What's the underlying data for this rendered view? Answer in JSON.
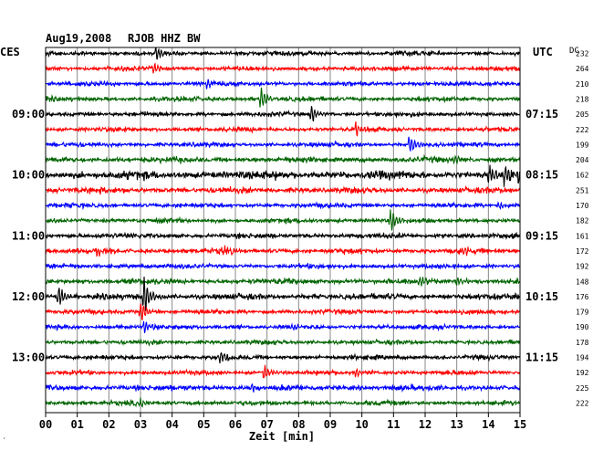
{
  "header": {
    "date": "Aug19,2008",
    "station": "RJOB HHZ BW",
    "left_timezone": "CES",
    "right_timezone": "UTC",
    "offset_label": "DC"
  },
  "footer": {
    "xlabel": "Zeit [min]",
    "corner_mark": "′"
  },
  "colors": {
    "cycle": [
      "#000000",
      "#ff0000",
      "#0000ff",
      "#006400"
    ],
    "grid": "#888888",
    "frame": "#000000",
    "text": "#000000"
  },
  "chart_data": {
    "type": "line",
    "title": "Aug19,2008  RJOB HHZ BW",
    "xlabel": "Zeit [min]",
    "xlim": [
      0,
      15
    ],
    "x_ticks": [
      "00",
      "01",
      "02",
      "03",
      "04",
      "05",
      "06",
      "07",
      "08",
      "09",
      "10",
      "11",
      "12",
      "13",
      "14",
      "15"
    ],
    "traces_count": 24,
    "left_time_labels": [
      {
        "trace": 4,
        "label": "09:00"
      },
      {
        "trace": 8,
        "label": "10:00"
      },
      {
        "trace": 12,
        "label": "11:00"
      },
      {
        "trace": 16,
        "label": "12:00"
      },
      {
        "trace": 20,
        "label": "13:00"
      }
    ],
    "right_time_labels": [
      {
        "trace": 4,
        "label": "07:15"
      },
      {
        "trace": 8,
        "label": "08:15"
      },
      {
        "trace": 12,
        "label": "09:15"
      },
      {
        "trace": 16,
        "label": "10:15"
      },
      {
        "trace": 20,
        "label": "11:15"
      }
    ],
    "dc_offsets": [
      232,
      264,
      210,
      218,
      205,
      222,
      199,
      204,
      162,
      251,
      170,
      182,
      161,
      172,
      192,
      148,
      176,
      179,
      190,
      178,
      194,
      192,
      225,
      222
    ],
    "trace_noise_level": [
      1,
      1,
      1,
      1,
      1,
      1,
      1,
      1.2,
      1.8,
      1.3,
      1,
      1,
      1.1,
      1.1,
      1,
      1.2,
      1.3,
      1,
      1,
      1,
      1,
      1,
      1.2,
      1
    ],
    "events": [
      {
        "trace": 0,
        "minute": 3.5,
        "amplitude": 9
      },
      {
        "trace": 1,
        "minute": 3.4,
        "amplitude": 7
      },
      {
        "trace": 2,
        "minute": 5.1,
        "amplitude": 5
      },
      {
        "trace": 3,
        "minute": 6.8,
        "amplitude": 14
      },
      {
        "trace": 4,
        "minute": 8.4,
        "amplitude": 11
      },
      {
        "trace": 5,
        "minute": 9.8,
        "amplitude": 9
      },
      {
        "trace": 6,
        "minute": 11.5,
        "amplitude": 13
      },
      {
        "trace": 7,
        "minute": 12.9,
        "amplitude": 7
      },
      {
        "trace": 8,
        "minute": 14.0,
        "amplitude": 10
      },
      {
        "trace": 8,
        "minute": 14.5,
        "amplitude": 12
      },
      {
        "trace": 8,
        "minute": 14.95,
        "amplitude": 8
      },
      {
        "trace": 11,
        "minute": 10.9,
        "amplitude": 12
      },
      {
        "trace": 10,
        "minute": 14.3,
        "amplitude": 5
      },
      {
        "trace": 13,
        "minute": 1.6,
        "amplitude": 5
      },
      {
        "trace": 13,
        "minute": 5.6,
        "amplitude": 5
      },
      {
        "trace": 13,
        "minute": 13.2,
        "amplitude": 5
      },
      {
        "trace": 15,
        "minute": 11.8,
        "amplitude": 8
      },
      {
        "trace": 15,
        "minute": 13.0,
        "amplitude": 6
      },
      {
        "trace": 16,
        "minute": 0.4,
        "amplitude": 14
      },
      {
        "trace": 16,
        "minute": 3.1,
        "amplitude": 22
      },
      {
        "trace": 17,
        "minute": 3.0,
        "amplitude": 13
      },
      {
        "trace": 18,
        "minute": 3.1,
        "amplitude": 8
      },
      {
        "trace": 18,
        "minute": 7.8,
        "amplitude": 5
      },
      {
        "trace": 20,
        "minute": 5.5,
        "amplitude": 9
      },
      {
        "trace": 21,
        "minute": 6.9,
        "amplitude": 10
      },
      {
        "trace": 21,
        "minute": 9.8,
        "amplitude": 6
      },
      {
        "trace": 22,
        "minute": 6.5,
        "amplitude": 6
      },
      {
        "trace": 23,
        "minute": 3.0,
        "amplitude": 6
      }
    ]
  }
}
